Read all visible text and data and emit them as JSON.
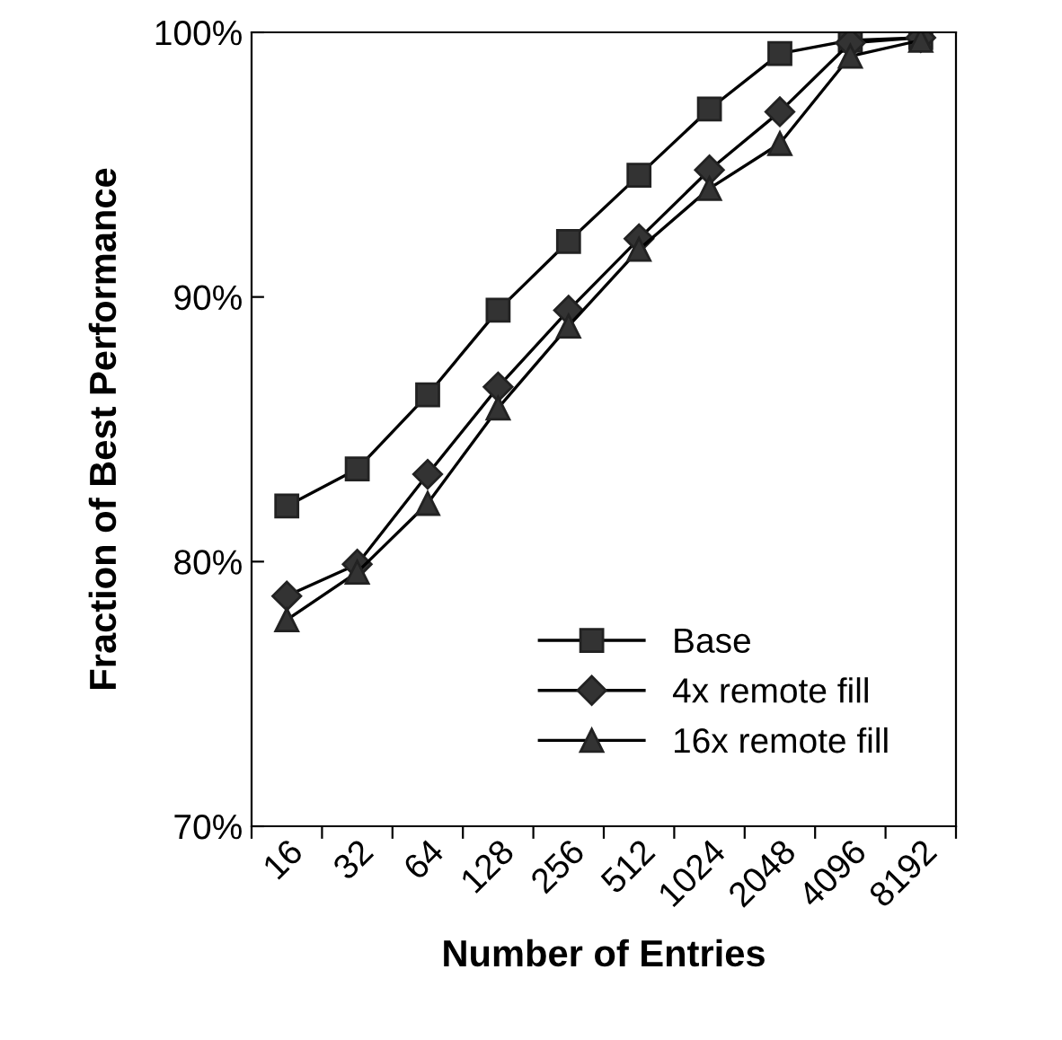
{
  "chart_data": {
    "type": "line",
    "xlabel": "Number of Entries",
    "ylabel": "Fraction of Best Performance",
    "categories": [
      "16",
      "32",
      "64",
      "128",
      "256",
      "512",
      "1024",
      "2048",
      "4096",
      "8192"
    ],
    "series": [
      {
        "name": "Base",
        "color": "#000000",
        "marker": "square",
        "values": [
          82.1,
          83.5,
          86.3,
          89.5,
          92.1,
          94.6,
          97.1,
          99.2,
          99.7,
          99.8
        ]
      },
      {
        "name": "4x remote fill",
        "color": "#000000",
        "marker": "diamond",
        "values": [
          78.7,
          79.9,
          83.3,
          86.6,
          89.5,
          92.2,
          94.8,
          97.0,
          99.6,
          99.8
        ]
      },
      {
        "name": "16x remote fill",
        "color": "#000000",
        "marker": "triangle",
        "values": [
          77.8,
          79.6,
          82.2,
          85.8,
          88.9,
          91.8,
          94.1,
          95.8,
          99.1,
          99.7
        ]
      }
    ],
    "ylim": [
      70,
      100
    ],
    "yticks": [
      {
        "value": 70,
        "label": "70%"
      },
      {
        "value": 80,
        "label": "80%"
      },
      {
        "value": 90,
        "label": "90%"
      },
      {
        "value": 100,
        "label": "100%"
      }
    ],
    "grid": false,
    "legend": "bottom right",
    "line_style": "solid"
  }
}
